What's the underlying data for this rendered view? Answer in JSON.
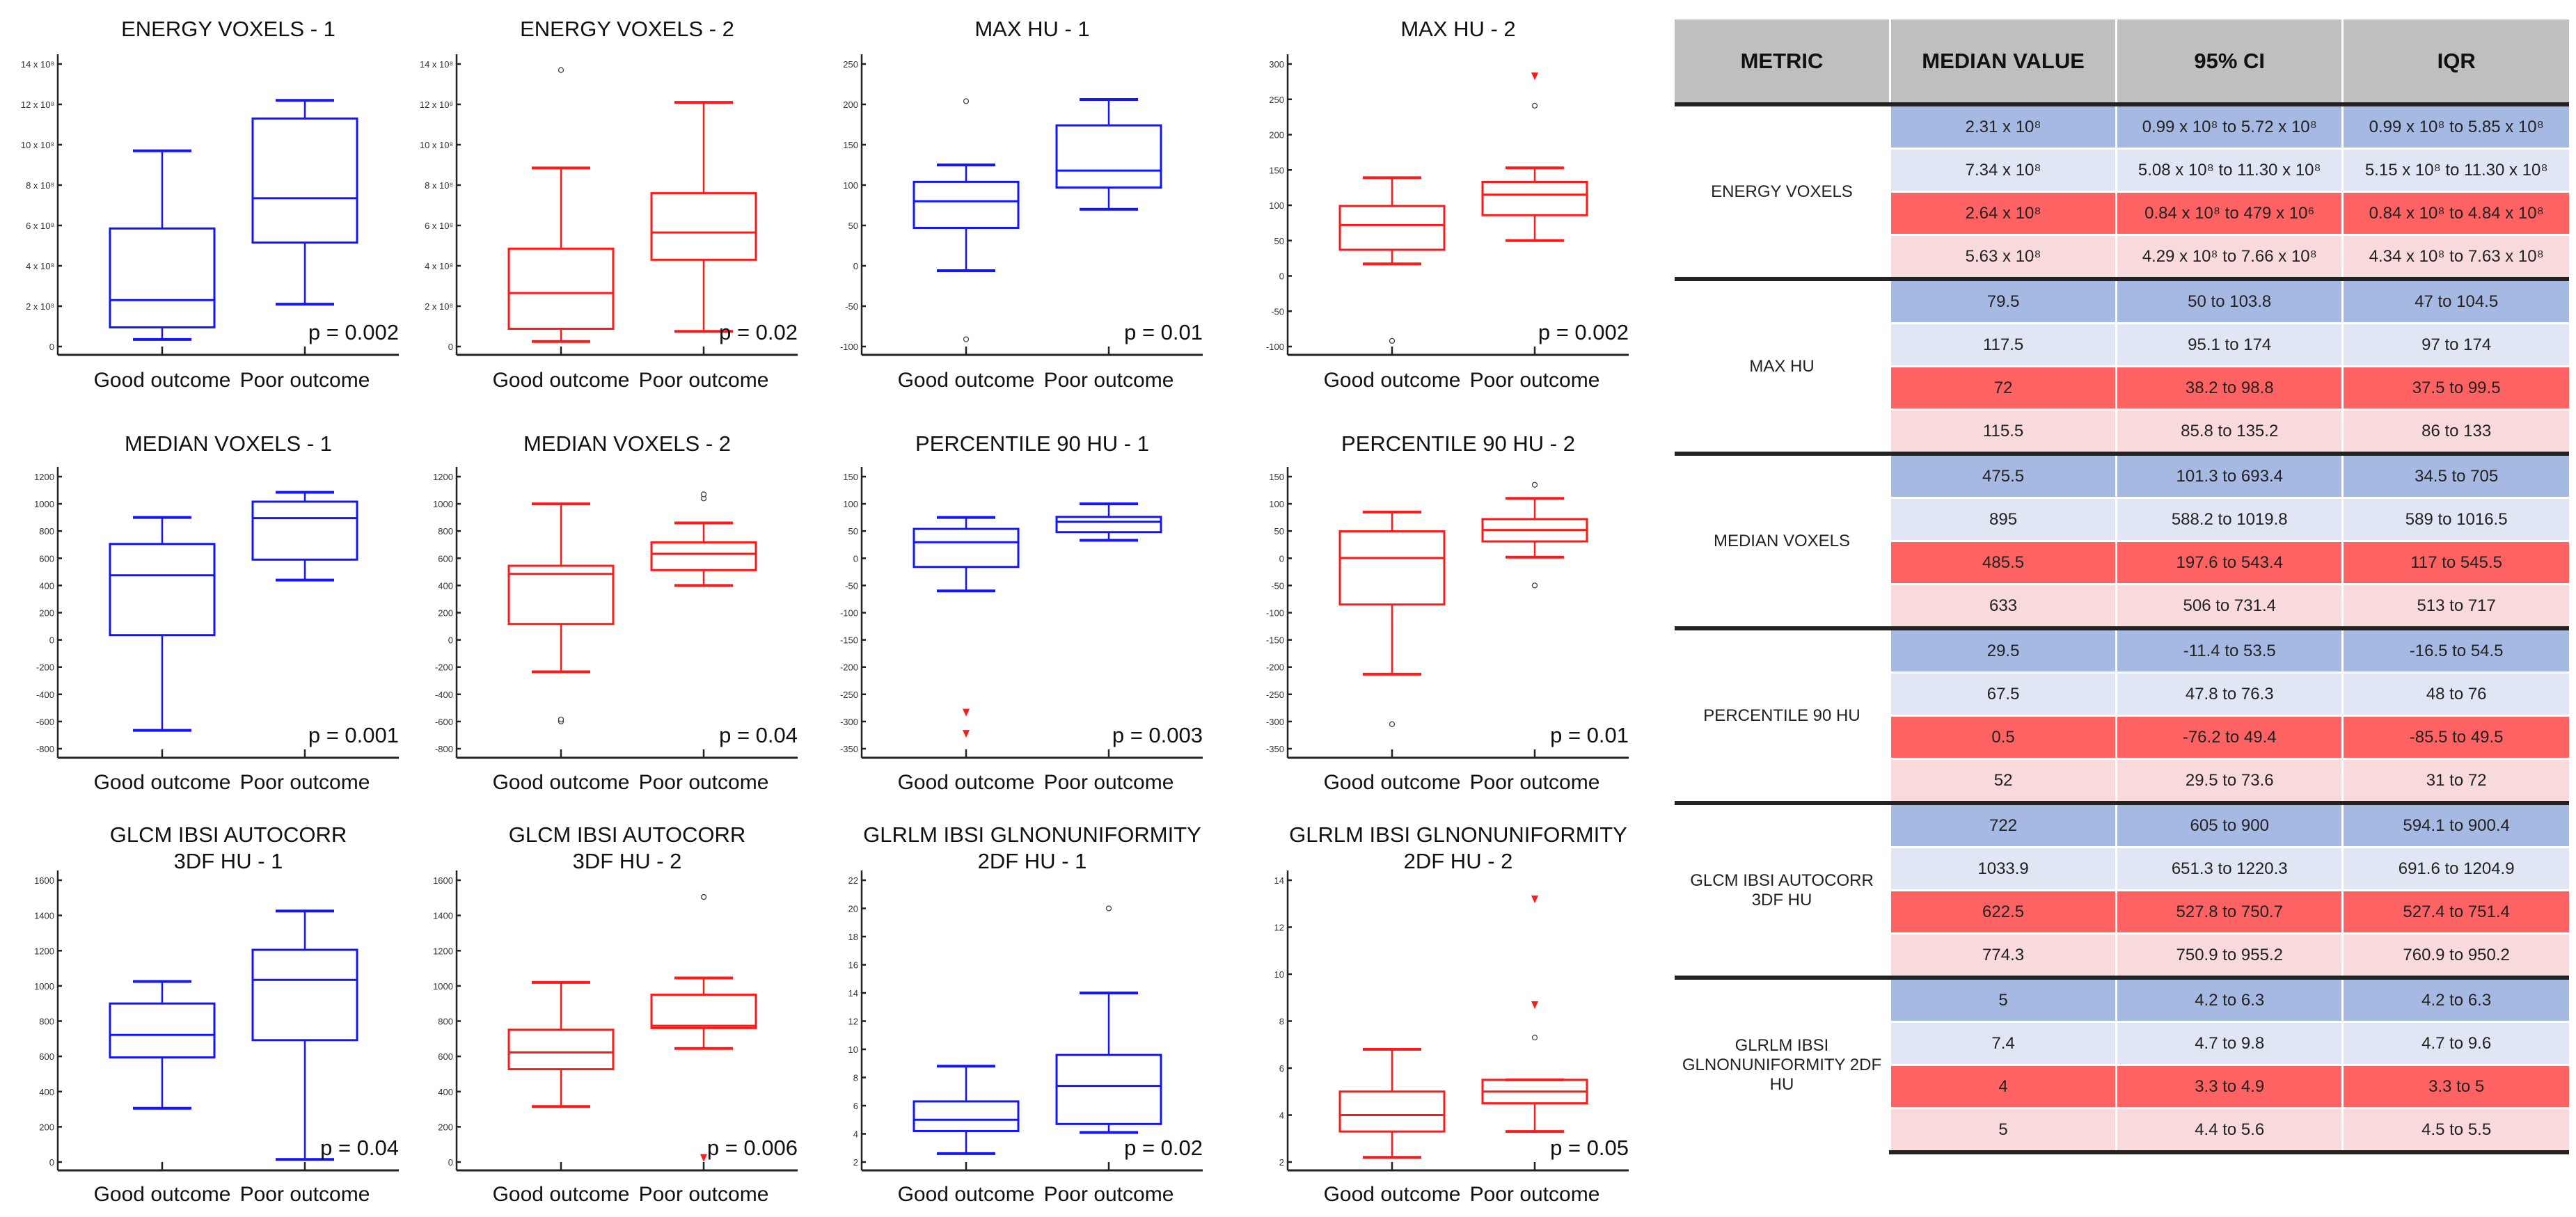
{
  "colors": {
    "set1": "#1414ff",
    "set2": "#ff1a1a",
    "row_good1": "#a6b9e2",
    "row_poor1": "#e0e6f3",
    "row_good2": "#fe6262",
    "row_poor2": "#f8d9dc",
    "header": "#bfbfbf"
  },
  "categories": [
    "Good outcome",
    "Poor outcome"
  ],
  "chart_data": [
    {
      "type": "box",
      "title": [
        "ENERGY VOXELS - 1"
      ],
      "color": "#1414ff",
      "ylim": [
        0,
        14
      ],
      "ticks": [
        0,
        2,
        4,
        6,
        8,
        10,
        12,
        14
      ],
      "tick_labels": [
        "0",
        "2 x 10⁸",
        "4 x 10⁸",
        "6 x 10⁸",
        "8 x 10⁸",
        "10 x 10⁸",
        "12 x 10⁸",
        "14 x 10⁸"
      ],
      "unit": "x 10^8",
      "series": [
        {
          "name": "Good outcome",
          "whisker_low": 0.35,
          "q1": 0.95,
          "median": 2.3,
          "q3": 5.85,
          "whisker_high": 9.7,
          "outliers": [],
          "extremes": []
        },
        {
          "name": "Poor outcome",
          "whisker_low": 2.1,
          "q1": 5.15,
          "median": 7.35,
          "q3": 11.3,
          "whisker_high": 12.2,
          "outliers": [],
          "extremes": []
        }
      ],
      "p_label": "p = 0.002"
    },
    {
      "type": "box",
      "title": [
        "ENERGY VOXELS - 2"
      ],
      "color": "#ff1a1a",
      "ylim": [
        0,
        14
      ],
      "ticks": [
        0,
        2,
        4,
        6,
        8,
        10,
        12,
        14
      ],
      "tick_labels": [
        "0",
        "2 x 10⁸",
        "4 x 10⁸",
        "6 x 10⁸",
        "8 x 10⁸",
        "10 x 10⁸",
        "12 x 10⁸",
        "14 x 10⁸"
      ],
      "unit": "x 10^8",
      "series": [
        {
          "name": "Good outcome",
          "whisker_low": 0.25,
          "q1": 0.88,
          "median": 2.65,
          "q3": 4.85,
          "whisker_high": 8.85,
          "outliers": [
            13.7
          ],
          "extremes": []
        },
        {
          "name": "Poor outcome",
          "whisker_low": 0.75,
          "q1": 4.3,
          "median": 5.65,
          "q3": 7.6,
          "whisker_high": 12.1,
          "outliers": [],
          "extremes": []
        }
      ],
      "p_label": "p = 0.02"
    },
    {
      "type": "box",
      "title": [
        "MAX HU - 1"
      ],
      "color": "#1414ff",
      "ylim": [
        -100,
        250
      ],
      "ticks": [
        -100,
        -50,
        0,
        50,
        100,
        150,
        200,
        250
      ],
      "tick_labels": [
        "-100",
        "-50",
        "0",
        "50",
        "100",
        "150",
        "200",
        "250"
      ],
      "series": [
        {
          "name": "Good outcome",
          "whisker_low": -6,
          "q1": 47,
          "median": 80,
          "q3": 104,
          "whisker_high": 125,
          "outliers": [
            204,
            -91
          ],
          "extremes": []
        },
        {
          "name": "Poor outcome",
          "whisker_low": 70,
          "q1": 97,
          "median": 118,
          "q3": 174,
          "whisker_high": 206,
          "outliers": [],
          "extremes": []
        }
      ],
      "p_label": "p = 0.01"
    },
    {
      "type": "box",
      "title": [
        "MAX HU - 2"
      ],
      "color": "#ff1a1a",
      "ylim": [
        -100,
        300
      ],
      "ticks": [
        -100,
        -50,
        0,
        50,
        100,
        150,
        200,
        250,
        300
      ],
      "tick_labels": [
        "-100",
        "-50",
        "0",
        "50",
        "100",
        "150",
        "200",
        "250",
        "300"
      ],
      "series": [
        {
          "name": "Good outcome",
          "whisker_low": 17,
          "q1": 37,
          "median": 72,
          "q3": 99,
          "whisker_high": 139,
          "outliers": [
            -92
          ],
          "extremes": []
        },
        {
          "name": "Poor outcome",
          "whisker_low": 50,
          "q1": 86,
          "median": 115,
          "q3": 133,
          "whisker_high": 153,
          "outliers": [
            241
          ],
          "extremes": [
            283
          ]
        }
      ],
      "p_label": "p = 0.002"
    },
    {
      "type": "box",
      "title": [
        "MEDIAN VOXELS - 1"
      ],
      "color": "#1414ff",
      "ylim": [
        -800,
        1200
      ],
      "ticks": [
        -800,
        -600,
        -400,
        -200,
        0,
        200,
        400,
        600,
        800,
        1000,
        1200
      ],
      "tick_labels": [
        "-800",
        "-600",
        "-400",
        "-200",
        "0",
        "200",
        "400",
        "600",
        "800",
        "1000",
        "1200"
      ],
      "series": [
        {
          "name": "Good outcome",
          "whisker_low": -665,
          "q1": 35,
          "median": 475,
          "q3": 705,
          "whisker_high": 900,
          "outliers": [],
          "extremes": []
        },
        {
          "name": "Poor outcome",
          "whisker_low": 440,
          "q1": 590,
          "median": 895,
          "q3": 1016,
          "whisker_high": 1085,
          "outliers": [],
          "extremes": []
        }
      ],
      "p_label": "p = 0.001"
    },
    {
      "type": "box",
      "title": [
        "MEDIAN VOXELS - 2"
      ],
      "color": "#ff1a1a",
      "ylim": [
        -800,
        1200
      ],
      "ticks": [
        -800,
        -600,
        -400,
        -200,
        0,
        200,
        400,
        600,
        800,
        1000,
        1200
      ],
      "tick_labels": [
        "-800",
        "-600",
        "-400",
        "-200",
        "0",
        "200",
        "400",
        "600",
        "800",
        "1000",
        "1200"
      ],
      "series": [
        {
          "name": "Good outcome",
          "whisker_low": -235,
          "q1": 117,
          "median": 485,
          "q3": 545,
          "whisker_high": 1000,
          "outliers": [
            -600,
            -585
          ],
          "extremes": []
        },
        {
          "name": "Poor outcome",
          "whisker_low": 400,
          "q1": 513,
          "median": 633,
          "q3": 717,
          "whisker_high": 860,
          "outliers": [
            1040,
            1070
          ],
          "extremes": []
        }
      ],
      "p_label": "p = 0.04"
    },
    {
      "type": "box",
      "title": [
        "PERCENTILE 90 HU - 1"
      ],
      "color": "#1414ff",
      "ylim": [
        -350,
        150
      ],
      "ticks": [
        -350,
        -300,
        -250,
        -200,
        -150,
        -100,
        -50,
        0,
        50,
        100,
        150
      ],
      "tick_labels": [
        "-350",
        "-300",
        "-250",
        "-200",
        "-150",
        "-100",
        "-50",
        "0",
        "50",
        "100",
        "150"
      ],
      "series": [
        {
          "name": "Good outcome",
          "whisker_low": -60,
          "q1": -16,
          "median": 29.5,
          "q3": 54,
          "whisker_high": 75,
          "outliers": [],
          "extremes": [
            -283,
            -322
          ]
        },
        {
          "name": "Poor outcome",
          "whisker_low": 33,
          "q1": 48,
          "median": 67,
          "q3": 76,
          "whisker_high": 100,
          "outliers": [],
          "extremes": []
        }
      ],
      "p_label": "p = 0.003"
    },
    {
      "type": "box",
      "title": [
        "PERCENTILE 90 HU - 2"
      ],
      "color": "#ff1a1a",
      "ylim": [
        -350,
        150
      ],
      "ticks": [
        -350,
        -300,
        -250,
        -200,
        -150,
        -100,
        -50,
        0,
        50,
        100,
        150
      ],
      "tick_labels": [
        "-350",
        "-300",
        "-250",
        "-200",
        "-150",
        "-100",
        "-50",
        "0",
        "50",
        "100",
        "150"
      ],
      "series": [
        {
          "name": "Good outcome",
          "whisker_low": -213,
          "q1": -85,
          "median": 0.5,
          "q3": 49.5,
          "whisker_high": 85,
          "outliers": [
            -305
          ],
          "extremes": []
        },
        {
          "name": "Poor outcome",
          "whisker_low": 2,
          "q1": 31,
          "median": 52,
          "q3": 72,
          "whisker_high": 110,
          "outliers": [
            135,
            -50
          ],
          "extremes": []
        }
      ],
      "p_label": "p = 0.01"
    },
    {
      "type": "box",
      "title": [
        "GLCM IBSI AUTOCORR",
        "3DF HU - 1"
      ],
      "color": "#1414ff",
      "ylim": [
        0,
        1600
      ],
      "ticks": [
        0,
        200,
        400,
        600,
        800,
        1000,
        1200,
        1400,
        1600
      ],
      "tick_labels": [
        "0",
        "200",
        "400",
        "600",
        "800",
        "1000",
        "1200",
        "1400",
        "1600"
      ],
      "series": [
        {
          "name": "Good outcome",
          "whisker_low": 305,
          "q1": 594,
          "median": 722,
          "q3": 900,
          "whisker_high": 1025,
          "outliers": [],
          "extremes": []
        },
        {
          "name": "Poor outcome",
          "whisker_low": 15,
          "q1": 692,
          "median": 1034,
          "q3": 1205,
          "whisker_high": 1425,
          "outliers": [],
          "extremes": []
        }
      ],
      "p_label": "p = 0.04"
    },
    {
      "type": "box",
      "title": [
        "GLCM IBSI AUTOCORR",
        "3DF HU - 2"
      ],
      "color": "#ff1a1a",
      "ylim": [
        0,
        1600
      ],
      "ticks": [
        0,
        200,
        400,
        600,
        800,
        1000,
        1200,
        1400,
        1600
      ],
      "tick_labels": [
        "0",
        "200",
        "400",
        "600",
        "800",
        "1000",
        "1200",
        "1400",
        "1600"
      ],
      "series": [
        {
          "name": "Good outcome",
          "whisker_low": 315,
          "q1": 527,
          "median": 622,
          "q3": 751,
          "whisker_high": 1020,
          "outliers": [],
          "extremes": []
        },
        {
          "name": "Poor outcome",
          "whisker_low": 645,
          "q1": 761,
          "median": 774,
          "q3": 950,
          "whisker_high": 1045,
          "outliers": [
            1505
          ],
          "extremes": [
            25
          ]
        }
      ],
      "p_label": "p = 0.006"
    },
    {
      "type": "box",
      "title": [
        "GLRLM IBSI GLNONUNIFORMITY",
        "2DF HU - 1"
      ],
      "color": "#1414ff",
      "ylim": [
        2,
        22
      ],
      "ticks": [
        2,
        4,
        6,
        8,
        10,
        12,
        14,
        16,
        18,
        20,
        22
      ],
      "tick_labels": [
        "2",
        "4",
        "6",
        "8",
        "10",
        "12",
        "14",
        "16",
        "18",
        "20",
        "22"
      ],
      "series": [
        {
          "name": "Good outcome",
          "whisker_low": 2.6,
          "q1": 4.2,
          "median": 5,
          "q3": 6.3,
          "whisker_high": 8.8,
          "outliers": [],
          "extremes": []
        },
        {
          "name": "Poor outcome",
          "whisker_low": 4.1,
          "q1": 4.7,
          "median": 7.4,
          "q3": 9.6,
          "whisker_high": 14,
          "outliers": [
            20
          ],
          "extremes": []
        }
      ],
      "p_label": "p = 0.02"
    },
    {
      "type": "box",
      "title": [
        "GLRLM IBSI GLNONUNIFORMITY",
        "2DF HU - 2"
      ],
      "color": "#ff1a1a",
      "ylim": [
        2,
        14
      ],
      "ticks": [
        2,
        4,
        6,
        8,
        10,
        12,
        14
      ],
      "tick_labels": [
        "2",
        "4",
        "6",
        "8",
        "10",
        "12",
        "14"
      ],
      "series": [
        {
          "name": "Good outcome",
          "whisker_low": 2.2,
          "q1": 3.3,
          "median": 4,
          "q3": 5,
          "whisker_high": 6.8,
          "outliers": [],
          "extremes": []
        },
        {
          "name": "Poor outcome",
          "whisker_low": 3.3,
          "q1": 4.5,
          "median": 5,
          "q3": 5.5,
          "whisker_high": 5.5,
          "outliers": [
            7.3
          ],
          "extremes": [
            8.7,
            13.2
          ]
        }
      ],
      "p_label": "p = 0.05"
    }
  ],
  "table": {
    "headers": [
      "METRIC",
      "MEDIAN VALUE",
      "95% CI",
      "IQR"
    ],
    "groups": [
      {
        "metric": "ENERGY VOXELS",
        "rows": [
          [
            "2.31 x 10⁸",
            "0.99 x 10⁸ to 5.72 x 10⁸",
            "0.99 x 10⁸ to 5.85 x 10⁸"
          ],
          [
            "7.34 x 10⁸",
            "5.08 x 10⁸ to 11.30 x 10⁸",
            "5.15 x 10⁸ to 11.30 x 10⁸"
          ],
          [
            "2.64 x 10⁸",
            "0.84 x 10⁸ to 479 x 10⁶",
            "0.84 x 10⁸ to 4.84 x 10⁸"
          ],
          [
            "5.63 x 10⁸",
            "4.29 x 10⁸ to 7.66 x 10⁸",
            "4.34 x 10⁸ to 7.63 x 10⁸"
          ]
        ]
      },
      {
        "metric": "MAX HU",
        "rows": [
          [
            "79.5",
            "50 to 103.8",
            "47 to 104.5"
          ],
          [
            "117.5",
            "95.1 to 174",
            "97 to 174"
          ],
          [
            "72",
            "38.2 to 98.8",
            "37.5 to 99.5"
          ],
          [
            "115.5",
            "85.8 to 135.2",
            "86 to 133"
          ]
        ]
      },
      {
        "metric": "MEDIAN VOXELS",
        "rows": [
          [
            "475.5",
            "101.3 to 693.4",
            "34.5 to 705"
          ],
          [
            "895",
            "588.2 to 1019.8",
            "589 to 1016.5"
          ],
          [
            "485.5",
            "197.6 to 543.4",
            "117 to 545.5"
          ],
          [
            "633",
            "506 to 731.4",
            "513 to 717"
          ]
        ]
      },
      {
        "metric": "PERCENTILE 90 HU",
        "rows": [
          [
            "29.5",
            "-11.4 to 53.5",
            "-16.5 to 54.5"
          ],
          [
            "67.5",
            "47.8 to 76.3",
            "48 to 76"
          ],
          [
            "0.5",
            "-76.2 to 49.4",
            "-85.5 to 49.5"
          ],
          [
            "52",
            "29.5 to 73.6",
            "31 to 72"
          ]
        ]
      },
      {
        "metric": "GLCM IBSI AUTOCORR 3DF HU",
        "rows": [
          [
            "722",
            "605 to 900",
            "594.1 to 900.4"
          ],
          [
            "1033.9",
            "651.3 to 1220.3",
            "691.6 to 1204.9"
          ],
          [
            "622.5",
            "527.8 to 750.7",
            "527.4 to 751.4"
          ],
          [
            "774.3",
            "750.9 to 955.2",
            "760.9 to 950.2"
          ]
        ]
      },
      {
        "metric": "GLRLM IBSI GLNONUNIFORMITY 2DF HU",
        "rows": [
          [
            "5",
            "4.2 to 6.3",
            "4.2 to 6.3"
          ],
          [
            "7.4",
            "4.7 to 9.8",
            "4.7 to 9.6"
          ],
          [
            "4",
            "3.3 to 4.9",
            "3.3 to 5"
          ],
          [
            "5",
            "4.4 to 5.6",
            "4.5 to 5.5"
          ]
        ]
      }
    ]
  }
}
